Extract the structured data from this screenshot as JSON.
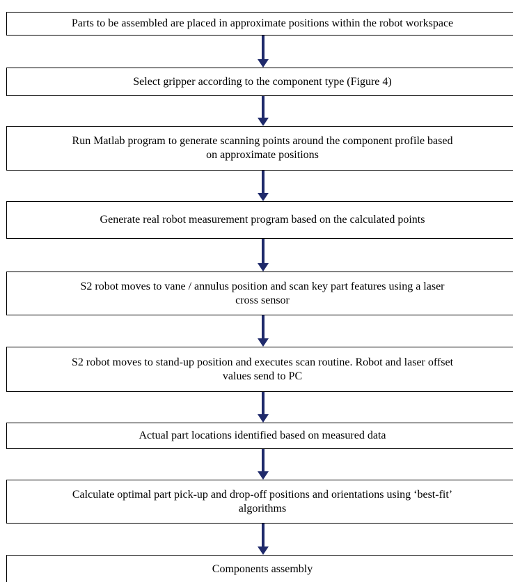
{
  "nodes": [
    {
      "lines": [
        "Parts to be assembled are placed in approximate positions within the robot workspace"
      ]
    },
    {
      "lines": [
        "Select gripper according to the component type (Figure 4)"
      ]
    },
    {
      "lines": [
        "Run Matlab program to generate scanning points around the component profile based",
        "on approximate positions"
      ]
    },
    {
      "lines": [
        "Generate real robot measurement program based on the calculated points"
      ]
    },
    {
      "lines": [
        "S2 robot moves to vane / annulus position and scan key part features using  a laser",
        "cross sensor"
      ]
    },
    {
      "lines": [
        "S2 robot moves to stand-up position and executes scan routine. Robot and laser offset",
        "values  send to PC"
      ]
    },
    {
      "lines": [
        "Actual part locations identified based on measured data"
      ]
    },
    {
      "lines": [
        "Calculate optimal part pick-up and drop-off positions and orientations using ‘best-fit’",
        "algorithms"
      ]
    },
    {
      "lines": [
        "Components assembly"
      ]
    }
  ]
}
